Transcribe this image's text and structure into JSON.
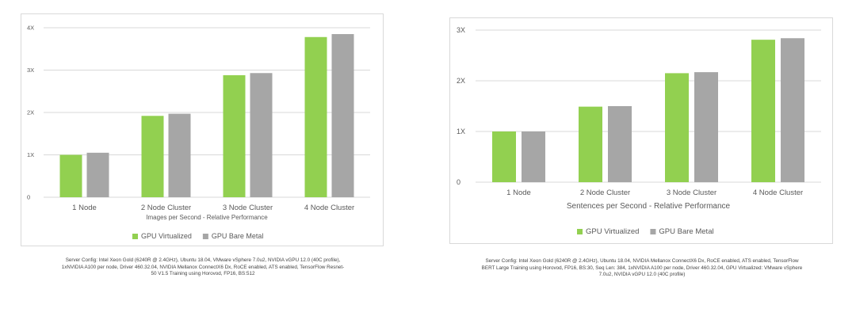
{
  "colors": {
    "virtualized": "#92d050",
    "bare_metal": "#a6a6a6",
    "grid": "#d9d9d9",
    "text": "#595959"
  },
  "chart_data": [
    {
      "type": "bar",
      "categories": [
        "1 Node",
        "2 Node Cluster",
        "3 Node Cluster",
        "4 Node Cluster"
      ],
      "series": [
        {
          "name": "GPU Virtualized",
          "values": [
            1.0,
            1.92,
            2.88,
            3.78
          ]
        },
        {
          "name": "GPU Bare Metal",
          "values": [
            1.05,
            1.97,
            2.93,
            3.85
          ]
        }
      ],
      "title": "",
      "xlabel": "Images per Second - Relative Performance",
      "ylabel": "",
      "ylim": [
        0,
        4
      ],
      "yticks": [
        {
          "value": 0,
          "label": "0"
        },
        {
          "value": 1,
          "label": "1X"
        },
        {
          "value": 2,
          "label": "2X"
        },
        {
          "value": 3,
          "label": "3X"
        },
        {
          "value": 4,
          "label": "4X"
        }
      ],
      "grid": true,
      "legend_position": "bottom"
    },
    {
      "type": "bar",
      "categories": [
        "1 Node",
        "2 Node Cluster",
        "3 Node Cluster",
        "4 Node Cluster"
      ],
      "series": [
        {
          "name": "GPU Virtualized",
          "values": [
            1.0,
            1.49,
            2.15,
            2.81
          ]
        },
        {
          "name": "GPU Bare Metal",
          "values": [
            1.0,
            1.5,
            2.17,
            2.84
          ]
        }
      ],
      "title": "",
      "xlabel": "Sentences per Second - Relative Performance",
      "ylabel": "",
      "ylim": [
        0,
        3
      ],
      "yticks": [
        {
          "value": 0,
          "label": "0"
        },
        {
          "value": 1,
          "label": "1X"
        },
        {
          "value": 2,
          "label": "2X"
        },
        {
          "value": 3,
          "label": "3X"
        }
      ],
      "grid": true,
      "legend_position": "bottom"
    }
  ],
  "captions": {
    "left": [
      "Server Config: Intel Xeon Gold (6240R @ 2.4GHz), Ubuntu 18.04, VMware vSphere 7.0u2, NVIDIA vGPU 12.0 (40C profile),",
      "1xNVIDIA A100 per node, Driver 460.32.04, NVIDIA Mellanox ConnectX6 Dx, RoCE enabled, ATS enabled, TensorFlow Resnet-",
      "50 V1.5 Training using Horovod, FP16, BS:512"
    ],
    "right": [
      "Server Config: Intel Xeon Gold (6240R @ 2.4GHz), Ubuntu 18.04, NVIDIA Mellanox ConnectX6 Dx, RoCE enabled, ATS enabled, TensorFlow",
      "BERT Large Training using Horovod, FP16, BS:30, Seq Len: 384, 1xNVIDIA A100 per node, Driver 460.32.04, GPU Virtualized: VMware vSphere",
      "7.0u2, NVIDIA vGPU 12.0 (40C profile)"
    ]
  }
}
